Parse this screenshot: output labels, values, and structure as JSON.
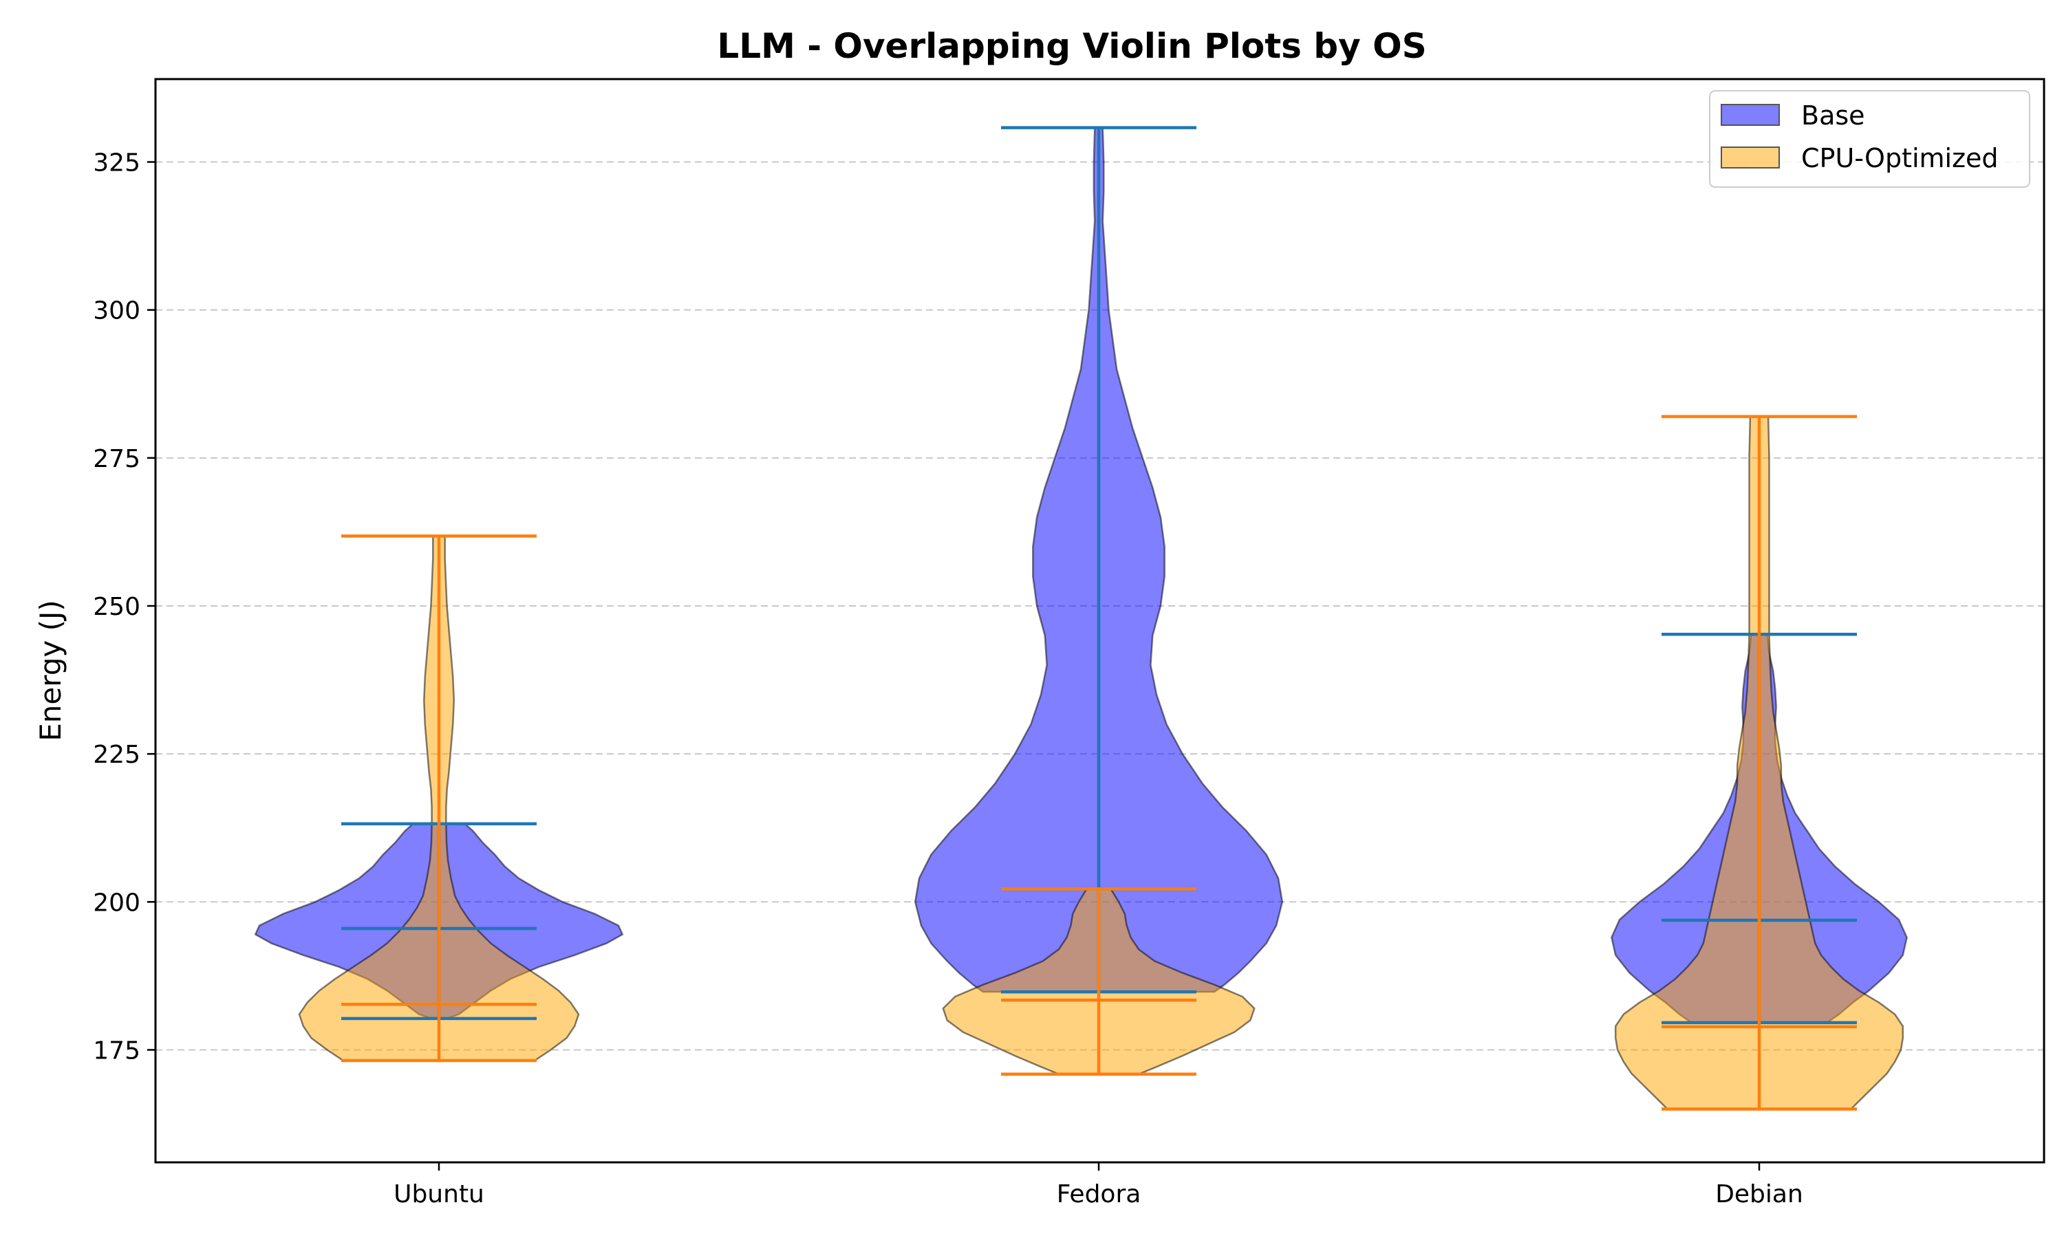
{
  "chart_data": {
    "type": "violin",
    "title": "LLM - Overlapping Violin Plots by OS",
    "xlabel": "",
    "ylabel": "Energy (J)",
    "ylim": [
      156,
      339
    ],
    "yticks": [
      175,
      200,
      225,
      250,
      275,
      300,
      325
    ],
    "grid": "y-dashed",
    "legend_position": "top-right",
    "categories": [
      "Ubuntu",
      "Fedora",
      "Debian"
    ],
    "series": [
      {
        "name": "Base",
        "fill_color": "#0000ff",
        "line_color": "#1f77b4",
        "stats": [
          {
            "min": 180.3,
            "max": 213.2,
            "median": 195.5
          },
          {
            "min": 184.8,
            "max": 330.8,
            "median": 202.2
          },
          {
            "min": 179.6,
            "max": 245.2,
            "median": 196.9
          }
        ],
        "density": [
          [
            [
              180.3,
              0.04
            ],
            [
              181,
              0.1
            ],
            [
              183,
              0.18
            ],
            [
              185,
              0.26
            ],
            [
              187,
              0.36
            ],
            [
              189,
              0.5
            ],
            [
              191,
              0.68
            ],
            [
              193,
              0.84
            ],
            [
              194.5,
              0.92
            ],
            [
              196,
              0.9
            ],
            [
              198,
              0.78
            ],
            [
              200,
              0.62
            ],
            [
              202,
              0.5
            ],
            [
              204,
              0.4
            ],
            [
              206,
              0.33
            ],
            [
              208,
              0.28
            ],
            [
              210,
              0.22
            ],
            [
              212,
              0.17
            ],
            [
              213.2,
              0.13
            ]
          ],
          [
            [
              184.8,
              0.58
            ],
            [
              186,
              0.63
            ],
            [
              188,
              0.7
            ],
            [
              190,
              0.76
            ],
            [
              193,
              0.84
            ],
            [
              196,
              0.89
            ],
            [
              200,
              0.92
            ],
            [
              204,
              0.9
            ],
            [
              208,
              0.84
            ],
            [
              212,
              0.74
            ],
            [
              216,
              0.62
            ],
            [
              220,
              0.52
            ],
            [
              225,
              0.42
            ],
            [
              230,
              0.34
            ],
            [
              235,
              0.29
            ],
            [
              240,
              0.26
            ],
            [
              245,
              0.27
            ],
            [
              250,
              0.31
            ],
            [
              255,
              0.33
            ],
            [
              260,
              0.33
            ],
            [
              265,
              0.31
            ],
            [
              270,
              0.27
            ],
            [
              275,
              0.22
            ],
            [
              280,
              0.17
            ],
            [
              285,
              0.13
            ],
            [
              290,
              0.09
            ],
            [
              295,
              0.07
            ],
            [
              300,
              0.05
            ],
            [
              305,
              0.04
            ],
            [
              310,
              0.03
            ],
            [
              315,
              0.02
            ],
            [
              320,
              0.025
            ],
            [
              325,
              0.025
            ],
            [
              330.8,
              0.02
            ]
          ],
          [
            [
              179.6,
              0.34
            ],
            [
              181,
              0.4
            ],
            [
              183,
              0.47
            ],
            [
              185,
              0.55
            ],
            [
              188,
              0.65
            ],
            [
              191,
              0.72
            ],
            [
              194,
              0.74
            ],
            [
              197,
              0.7
            ],
            [
              200,
              0.6
            ],
            [
              203,
              0.48
            ],
            [
              206,
              0.38
            ],
            [
              209,
              0.3
            ],
            [
              212,
              0.24
            ],
            [
              215,
              0.18
            ],
            [
              218,
              0.14
            ],
            [
              221,
              0.11
            ],
            [
              224,
              0.09
            ],
            [
              227,
              0.08
            ],
            [
              230,
              0.08
            ],
            [
              233,
              0.085
            ],
            [
              236,
              0.08
            ],
            [
              239,
              0.07
            ],
            [
              242,
              0.05
            ],
            [
              245.2,
              0.04
            ]
          ]
        ]
      },
      {
        "name": "CPU-Optimized",
        "fill_color": "#ffa500",
        "line_color": "#ff7f0e",
        "stats": [
          {
            "min": 173.2,
            "max": 261.8,
            "median": 182.7
          },
          {
            "min": 170.9,
            "max": 202.2,
            "median": 183.4
          },
          {
            "min": 165.0,
            "max": 282.0,
            "median": 178.9
          }
        ],
        "density": [
          [
            [
              173.2,
              0.48
            ],
            [
              175,
              0.56
            ],
            [
              177,
              0.64
            ],
            [
              179,
              0.68
            ],
            [
              181,
              0.7
            ],
            [
              183,
              0.66
            ],
            [
              185,
              0.6
            ],
            [
              187,
              0.52
            ],
            [
              189,
              0.43
            ],
            [
              191,
              0.34
            ],
            [
              193,
              0.26
            ],
            [
              195,
              0.2
            ],
            [
              197,
              0.15
            ],
            [
              199,
              0.11
            ],
            [
              201,
              0.08
            ],
            [
              204,
              0.06
            ],
            [
              207,
              0.045
            ],
            [
              210,
              0.038
            ],
            [
              213,
              0.036
            ],
            [
              216,
              0.036
            ],
            [
              219,
              0.04
            ],
            [
              222,
              0.05
            ],
            [
              226,
              0.06
            ],
            [
              230,
              0.07
            ],
            [
              234,
              0.075
            ],
            [
              238,
              0.07
            ],
            [
              242,
              0.06
            ],
            [
              246,
              0.05
            ],
            [
              250,
              0.04
            ],
            [
              254,
              0.035
            ],
            [
              258,
              0.03
            ],
            [
              261.8,
              0.03
            ]
          ],
          [
            [
              170.9,
              0.2
            ],
            [
              172,
              0.28
            ],
            [
              174,
              0.42
            ],
            [
              176,
              0.55
            ],
            [
              178,
              0.68
            ],
            [
              180,
              0.76
            ],
            [
              182,
              0.78
            ],
            [
              184,
              0.72
            ],
            [
              186,
              0.58
            ],
            [
              188,
              0.42
            ],
            [
              190,
              0.28
            ],
            [
              192,
              0.2
            ],
            [
              194,
              0.16
            ],
            [
              196,
              0.14
            ],
            [
              198,
              0.13
            ],
            [
              200,
              0.1
            ],
            [
              202.2,
              0.06
            ]
          ],
          [
            [
              165.0,
              0.46
            ],
            [
              167,
              0.52
            ],
            [
              169,
              0.58
            ],
            [
              171,
              0.64
            ],
            [
              173,
              0.68
            ],
            [
              175,
              0.71
            ],
            [
              177,
              0.72
            ],
            [
              179,
              0.72
            ],
            [
              181,
              0.68
            ],
            [
              183,
              0.6
            ],
            [
              185,
              0.5
            ],
            [
              187,
              0.42
            ],
            [
              189,
              0.36
            ],
            [
              191,
              0.31
            ],
            [
              193,
              0.28
            ],
            [
              196,
              0.26
            ],
            [
              199,
              0.24
            ],
            [
              202,
              0.22
            ],
            [
              205,
              0.2
            ],
            [
              208,
              0.18
            ],
            [
              211,
              0.16
            ],
            [
              214,
              0.14
            ],
            [
              217,
              0.12
            ],
            [
              220,
              0.11
            ],
            [
              223,
              0.11
            ],
            [
              226,
              0.1
            ],
            [
              229,
              0.085
            ],
            [
              232,
              0.07
            ],
            [
              236,
              0.06
            ],
            [
              240,
              0.055
            ],
            [
              245,
              0.05
            ],
            [
              250,
              0.05
            ],
            [
              255,
              0.05
            ],
            [
              260,
              0.05
            ],
            [
              265,
              0.05
            ],
            [
              270,
              0.05
            ],
            [
              275,
              0.05
            ],
            [
              282,
              0.045
            ]
          ]
        ]
      }
    ]
  }
}
